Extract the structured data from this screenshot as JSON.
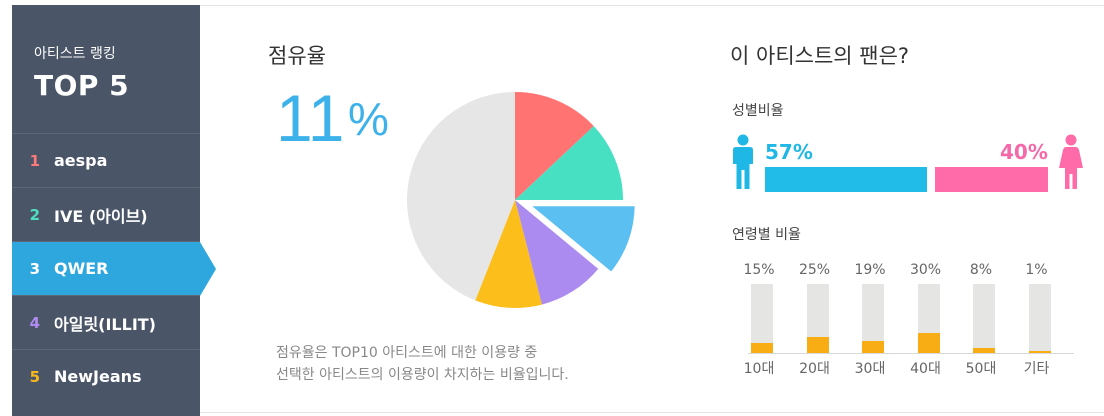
{
  "sidebar": {
    "subtitle": "아티스트 랭킹",
    "title": "TOP 5",
    "items": [
      {
        "rank": "1",
        "name": "aespa",
        "color": "#ff7a7a"
      },
      {
        "rank": "2",
        "name": "IVE (아이브)",
        "color": "#4de0c0"
      },
      {
        "rank": "3",
        "name": "QWER",
        "color": "#ffffff"
      },
      {
        "rank": "4",
        "name": "아일릿(ILLIT)",
        "color": "#b08cf2"
      },
      {
        "rank": "5",
        "name": "NewJeans",
        "color": "#f9b81b"
      }
    ],
    "active_index": 2
  },
  "share": {
    "title": "점유율",
    "value": "11",
    "unit": "%",
    "description_line1": "점유율은 TOP10 아티스트에 대한 이용량 중",
    "description_line2": "선택한 아티스트의 이용량이 차지하는 비율입니다."
  },
  "chart_data": {
    "type": "pie",
    "slices": [
      {
        "value": 13,
        "color": "#ff7473"
      },
      {
        "value": 12,
        "color": "#47e0c3"
      },
      {
        "value": 11,
        "color": "#5bbff1",
        "exploded": true
      },
      {
        "value": 10,
        "color": "#ab8bef"
      },
      {
        "value": 10,
        "color": "#fbbe1b"
      },
      {
        "value": 44,
        "color": "#e6e6e6"
      }
    ]
  },
  "fans": {
    "title": "이 아티스트의 팬은?",
    "gender_label": "성별비율",
    "male_pct": "57%",
    "female_pct": "40%",
    "male_value": 57,
    "female_value": 40,
    "age_label": "연령별 비율",
    "ages": [
      {
        "label": "10대",
        "pct": "15%",
        "value": 15
      },
      {
        "label": "20대",
        "pct": "25%",
        "value": 25
      },
      {
        "label": "30대",
        "pct": "19%",
        "value": 19
      },
      {
        "label": "40대",
        "pct": "30%",
        "value": 30
      },
      {
        "label": "50대",
        "pct": "8%",
        "value": 8
      },
      {
        "label": "기타",
        "pct": "1%",
        "value": 1
      }
    ]
  }
}
